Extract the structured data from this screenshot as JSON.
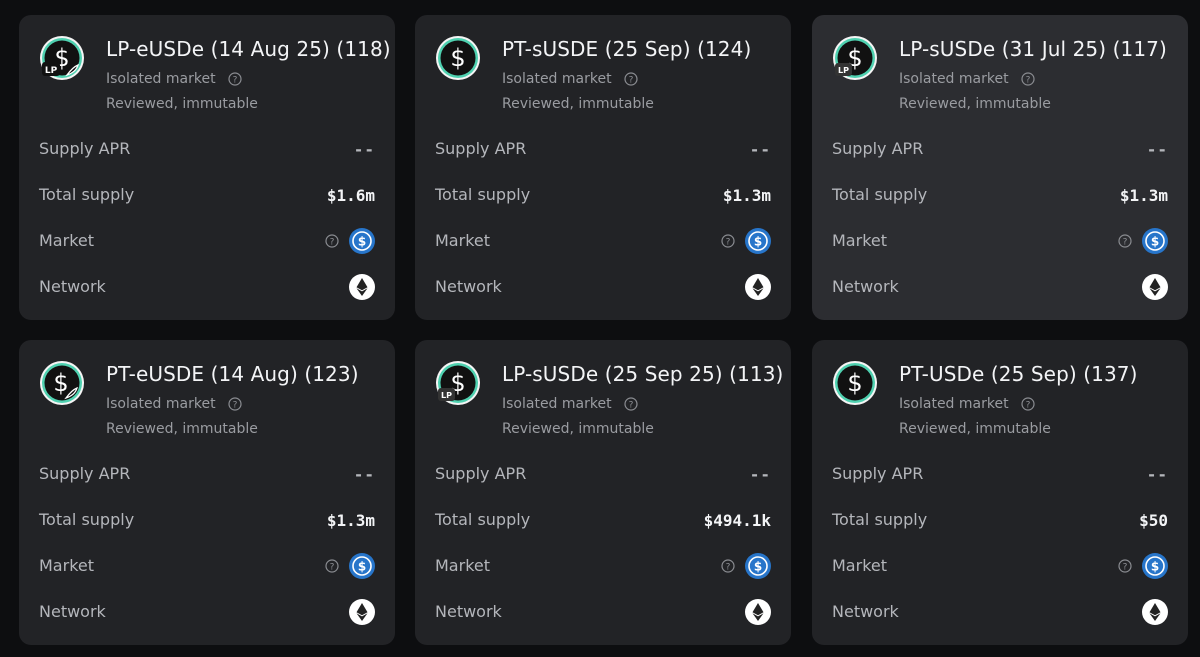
{
  "labels": {
    "isolated": "Isolated market",
    "reviewed": "Reviewed, immutable",
    "supply_apr": "Supply APR",
    "total_supply": "Total supply",
    "market": "Market",
    "network": "Network"
  },
  "colors": {
    "background": "#0d0e10",
    "card": "#222326",
    "card_highlight": "#2c2d31",
    "token_ring": "#4fd1b0",
    "usdc_blue": "#2775ca"
  },
  "cards": [
    {
      "title": "LP-eUSDe (14 Aug 25) (118)",
      "icon": "lp-eusde-token-icon",
      "supply_apr": "--",
      "total_supply": "$1.6m",
      "market_icon": "usdc-icon",
      "network_icon": "ethereum-icon"
    },
    {
      "title": "PT-sUSDE (25 Sep) (124)",
      "icon": "susde-token-icon",
      "supply_apr": "--",
      "total_supply": "$1.3m",
      "market_icon": "usdc-icon",
      "network_icon": "ethereum-icon"
    },
    {
      "title": "LP-sUSDe (31 Jul 25) (117)",
      "icon": "lp-susde-token-icon",
      "supply_apr": "--",
      "total_supply": "$1.3m",
      "market_icon": "usdc-icon",
      "network_icon": "ethereum-icon"
    },
    {
      "title": "PT-eUSDE (14 Aug) (123)",
      "icon": "eusde-token-icon",
      "supply_apr": "--",
      "total_supply": "$1.3m",
      "market_icon": "usdc-icon",
      "network_icon": "ethereum-icon"
    },
    {
      "title": "LP-sUSDe (25 Sep 25) (113)",
      "icon": "lp-susde-token-icon",
      "supply_apr": "--",
      "total_supply": "$494.1k",
      "market_icon": "usdc-icon",
      "network_icon": "ethereum-icon"
    },
    {
      "title": "PT-USDe (25 Sep) (137)",
      "icon": "usde-token-icon",
      "supply_apr": "--",
      "total_supply": "$50",
      "market_icon": "usdc-icon",
      "network_icon": "ethereum-icon"
    }
  ]
}
